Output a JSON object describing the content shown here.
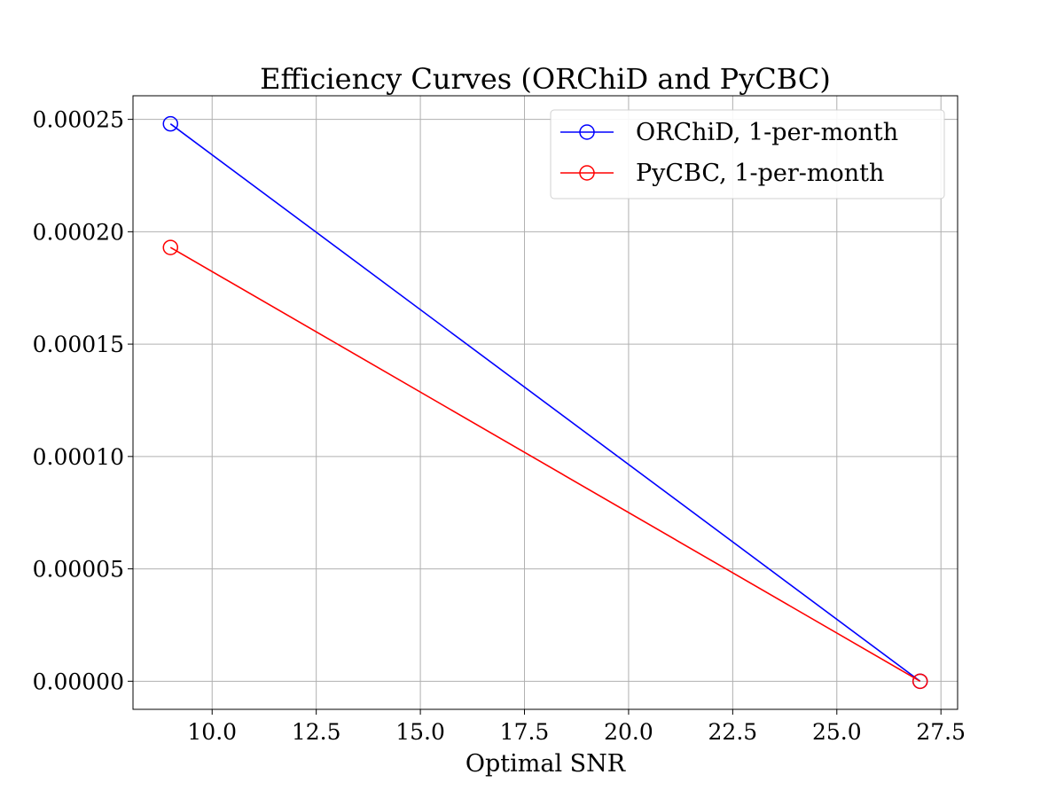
{
  "chart_data": {
    "type": "line",
    "title": "Efficiency Curves (ORChiD and PyCBC)",
    "xlabel": "Optimal SNR",
    "ylabel": "",
    "xlim": [
      8.1,
      27.9
    ],
    "ylim": [
      -1.25e-05,
      0.0002605
    ],
    "xticks": [
      10.0,
      12.5,
      15.0,
      17.5,
      20.0,
      22.5,
      25.0,
      27.5
    ],
    "xtick_labels": [
      "10.0",
      "12.5",
      "15.0",
      "17.5",
      "20.0",
      "22.5",
      "25.0",
      "27.5"
    ],
    "yticks": [
      0.0,
      5e-05,
      0.0001,
      0.00015,
      0.0002,
      0.00025
    ],
    "ytick_labels": [
      "0.00000",
      "0.00005",
      "0.00010",
      "0.00015",
      "0.00020",
      "0.00025"
    ],
    "grid": true,
    "legend_position": "top-right",
    "series": [
      {
        "name": "ORChiD, 1-per-month",
        "color": "#0000ff",
        "marker": "open-circle",
        "x": [
          9.0,
          27.0
        ],
        "y": [
          0.000248,
          0.0
        ]
      },
      {
        "name": "PyCBC, 1-per-month",
        "color": "#ff0000",
        "marker": "open-circle",
        "x": [
          9.0,
          27.0
        ],
        "y": [
          0.000193,
          0.0
        ]
      }
    ]
  }
}
